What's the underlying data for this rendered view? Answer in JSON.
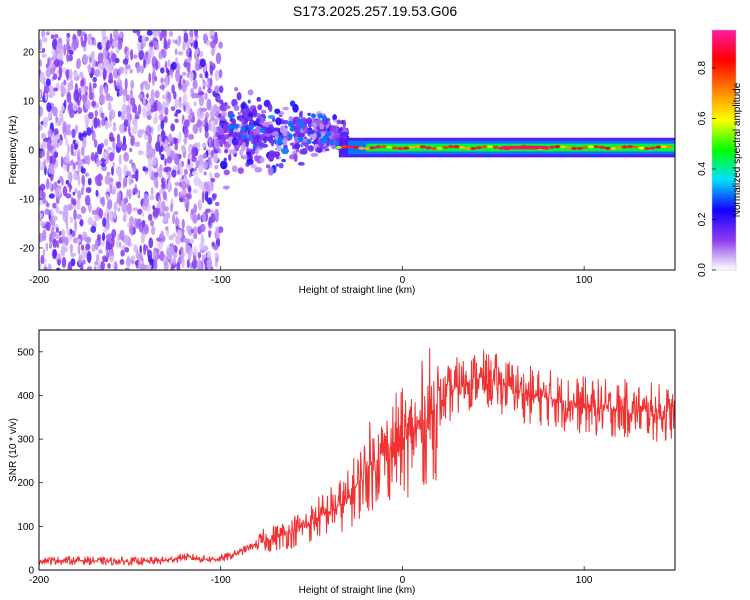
{
  "title": "S173.2025.257.19.53.G06",
  "chart_data": [
    {
      "type": "heatmap",
      "xlabel": "Height of straight line (km)",
      "ylabel": "Frequency (Hz)",
      "xlim": [
        -200,
        150
      ],
      "ylim": [
        -24.5,
        24.5
      ],
      "x_ticks": [
        -200,
        -100,
        0,
        100
      ],
      "x_tick_labels": [
        "-200",
        "-100",
        "0",
        "100"
      ],
      "y_ticks": [
        -20,
        -10,
        0,
        10,
        20
      ],
      "y_tick_labels": [
        "-20",
        "-10",
        "0",
        "10",
        "20"
      ],
      "colorbar": {
        "label": "Normalized spectral amplitude",
        "range": [
          0.0,
          0.95
        ],
        "ticks": [
          0.0,
          0.2,
          0.4,
          0.6,
          0.8
        ],
        "tick_labels": [
          "0.0",
          "0.2",
          "0.4",
          "0.6",
          "0.8"
        ],
        "colors": [
          "#ffffff",
          "#8c3cf0",
          "#1400ff",
          "#00e0ff",
          "#00ff00",
          "#ffff00",
          "#ff8000",
          "#ff0000",
          "#ff1aa0"
        ]
      },
      "features": [
        {
          "name": "noise-scatter",
          "x_range": [
            -200,
            -100
          ],
          "freq_range": [
            -24.5,
            24.5
          ],
          "level": 0.1
        },
        {
          "name": "transition-scatter",
          "x_range": [
            -100,
            -30
          ],
          "freq_range": [
            -12,
            12
          ],
          "level": 0.2
        },
        {
          "name": "signal-ridge",
          "x_range": [
            -35,
            150
          ],
          "freq": 0.5,
          "level": 0.85
        }
      ]
    },
    {
      "type": "line",
      "xlabel": "Height of straight line (km)",
      "ylabel": "SNR (10 * v/v)",
      "xlim": [
        -200,
        150
      ],
      "ylim": [
        0,
        550
      ],
      "x_ticks": [
        -200,
        -100,
        0,
        100
      ],
      "x_tick_labels": [
        "-200",
        "-100",
        "0",
        "100"
      ],
      "y_ticks": [
        0,
        100,
        200,
        300,
        400,
        500
      ],
      "y_tick_labels": [
        "0",
        "100",
        "200",
        "300",
        "400",
        "500"
      ],
      "series": [
        {
          "name": "SNR",
          "color": "#f03232",
          "x": [
            -200,
            -180,
            -160,
            -140,
            -130,
            -120,
            -110,
            -100,
            -90,
            -80,
            -70,
            -60,
            -50,
            -40,
            -30,
            -20,
            -10,
            0,
            10,
            20,
            30,
            40,
            50,
            60,
            70,
            80,
            90,
            100,
            110,
            120,
            130,
            140,
            150
          ],
          "y": [
            22,
            22,
            20,
            20,
            22,
            30,
            25,
            25,
            40,
            60,
            75,
            90,
            110,
            135,
            160,
            230,
            270,
            290,
            330,
            380,
            420,
            440,
            430,
            420,
            400,
            395,
            385,
            375,
            370,
            370,
            365,
            360,
            360
          ]
        }
      ]
    }
  ]
}
